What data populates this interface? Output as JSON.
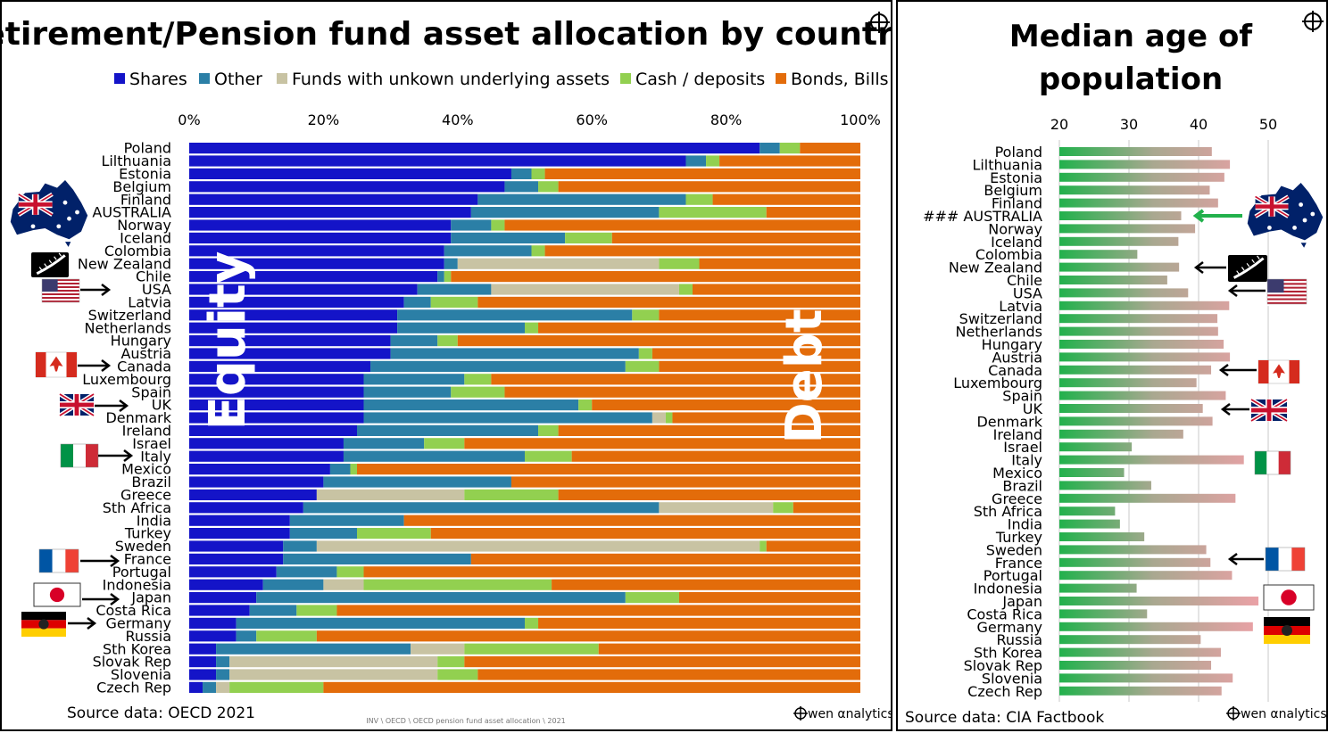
{
  "colors": {
    "Shares": "#1414c8",
    "Other": "#2b7fa6",
    "Funds": "#c8c3a3",
    "Cash": "#92d050",
    "Bonds": "#e36c0a",
    "age_green": "#22b14c",
    "age_pink": "#e2a2a2"
  },
  "left": {
    "title": "Retirement/Pension fund asset allocation by country",
    "source": "Source data: OECD 2021",
    "filepath": "INV \\ OECD \\ OECD pension fund asset allocation \\ 2021",
    "brand": "wen αnalytics",
    "annotation_equity": "Equity",
    "annotation_debt": "Debt"
  },
  "right": {
    "title_line1": "Median age of",
    "title_line2": "population",
    "source": "Source data: CIA Factbook",
    "brand": "wen αnalytics"
  },
  "chart_data": [
    {
      "type": "bar",
      "orientation": "horizontal-stacked-100",
      "title": "Retirement/Pension fund asset allocation by country",
      "xlim": [
        0,
        100
      ],
      "xticks": [
        "0%",
        "20%",
        "40%",
        "60%",
        "80%",
        "100%"
      ],
      "legend_position": "top",
      "categories": [
        "Poland",
        "Lilthuania",
        "Estonia",
        "Belgium",
        "Finland",
        "AUSTRALIA",
        "Norway",
        "Iceland",
        "Colombia",
        "New Zealand",
        "Chile",
        "USA",
        "Latvia",
        "Switzerland",
        "Netherlands",
        "Hungary",
        "Austria",
        "Canada",
        "Luxembourg",
        "Spain",
        "UK",
        "Denmark",
        "Ireland",
        "Israel",
        "Italy",
        "Mexico",
        "Brazil",
        "Greece",
        "Sth Africa",
        "India",
        "Turkey",
        "Sweden",
        "France",
        "Portugal",
        "Indonesia",
        "Japan",
        "Costa Rica",
        "Germany",
        "Russia",
        "Sth Korea",
        "Slovak Rep",
        "Slovenia",
        "Czech Rep"
      ],
      "series": [
        {
          "name": "Shares",
          "color_key": "Shares",
          "values": [
            85,
            74,
            48,
            47,
            43,
            42,
            39,
            39,
            38,
            38,
            37,
            34,
            32,
            31,
            31,
            30,
            30,
            27,
            26,
            26,
            26,
            26,
            25,
            23,
            23,
            21,
            20,
            19,
            17,
            15,
            15,
            14,
            14,
            13,
            11,
            10,
            9,
            7,
            7,
            4,
            4,
            4,
            2
          ]
        },
        {
          "name": "Other",
          "color_key": "Other",
          "values": [
            3,
            3,
            3,
            5,
            31,
            28,
            6,
            17,
            13,
            2,
            1,
            11,
            4,
            35,
            19,
            7,
            37,
            38,
            15,
            13,
            32,
            43,
            27,
            12,
            27,
            3,
            28,
            0,
            53,
            17,
            10,
            5,
            28,
            9,
            9,
            55,
            7,
            43,
            3,
            29,
            2,
            2,
            2
          ]
        },
        {
          "name": "Funds with unkown underlying assets",
          "color_key": "Funds",
          "values": [
            0,
            0,
            0,
            0,
            0,
            0,
            0,
            0,
            0,
            30,
            0,
            28,
            0,
            0,
            0,
            0,
            0,
            0,
            0,
            0,
            0,
            2,
            0,
            0,
            0,
            0,
            0,
            22,
            17,
            0,
            0,
            66,
            0,
            0,
            6,
            0,
            0,
            0,
            0,
            8,
            31,
            31,
            2
          ]
        },
        {
          "name": "Cash / deposits",
          "color_key": "Cash",
          "values": [
            3,
            2,
            2,
            3,
            4,
            16,
            2,
            7,
            2,
            6,
            1,
            2,
            7,
            4,
            2,
            3,
            2,
            5,
            4,
            8,
            2,
            1,
            3,
            6,
            7,
            1,
            0,
            14,
            3,
            0,
            11,
            1,
            0,
            4,
            28,
            8,
            6,
            2,
            9,
            20,
            4,
            6,
            14
          ]
        },
        {
          "name": "Bonds, Bills",
          "color_key": "Bonds",
          "values": [
            9,
            21,
            47,
            45,
            22,
            14,
            53,
            37,
            47,
            24,
            61,
            25,
            57,
            30,
            48,
            60,
            31,
            30,
            55,
            53,
            40,
            28,
            45,
            59,
            43,
            75,
            52,
            45,
            10,
            68,
            64,
            14,
            58,
            74,
            46,
            27,
            78,
            48,
            81,
            39,
            59,
            57,
            80
          ]
        }
      ]
    },
    {
      "type": "bar",
      "orientation": "horizontal",
      "title": "Median age of population",
      "xlim": [
        20,
        53
      ],
      "xticks": [
        "20",
        "30",
        "40",
        "50"
      ],
      "categories": [
        "Poland",
        "Lilthuania",
        "Estonia",
        "Belgium",
        "Finland",
        "### AUSTRALIA",
        "Norway",
        "Iceland",
        "Colombia",
        "New Zealand",
        "Chile",
        "USA",
        "Latvia",
        "Switzerland",
        "Netherlands",
        "Hungary",
        "Austria",
        "Canada",
        "Luxembourg",
        "Spain",
        "UK",
        "Denmark",
        "Ireland",
        "Israel",
        "Italy",
        "Mexico",
        "Brazil",
        "Greece",
        "Sth Africa",
        "India",
        "Turkey",
        "Sweden",
        "France",
        "Portugal",
        "Indonesia",
        "Japan",
        "Costa Rica",
        "Germany",
        "Russia",
        "Sth Korea",
        "Slovak Rep",
        "Slovenia",
        "Czech Rep"
      ],
      "values": [
        41.9,
        44.5,
        43.7,
        41.6,
        42.8,
        37.5,
        39.5,
        37.1,
        31.2,
        37.2,
        35.5,
        38.5,
        44.4,
        42.7,
        42.8,
        43.6,
        44.5,
        41.8,
        39.7,
        43.9,
        40.6,
        42.0,
        37.8,
        30.4,
        46.5,
        29.3,
        33.2,
        45.3,
        28.0,
        28.7,
        32.2,
        41.1,
        41.7,
        44.8,
        31.1,
        48.6,
        32.6,
        47.8,
        40.3,
        43.2,
        41.8,
        44.9,
        43.3
      ]
    }
  ],
  "flags": [
    {
      "name": "australia",
      "icon": "australia-map-flag-icon"
    },
    {
      "name": "new-zealand",
      "icon": "new-zealand-flag-icon"
    },
    {
      "name": "usa",
      "icon": "usa-flag-icon"
    },
    {
      "name": "canada",
      "icon": "canada-flag-icon"
    },
    {
      "name": "uk",
      "icon": "uk-flag-icon"
    },
    {
      "name": "italy",
      "icon": "italy-flag-icon"
    },
    {
      "name": "france",
      "icon": "france-flag-icon"
    },
    {
      "name": "japan",
      "icon": "japan-flag-icon"
    },
    {
      "name": "germany",
      "icon": "germany-flag-icon"
    }
  ]
}
